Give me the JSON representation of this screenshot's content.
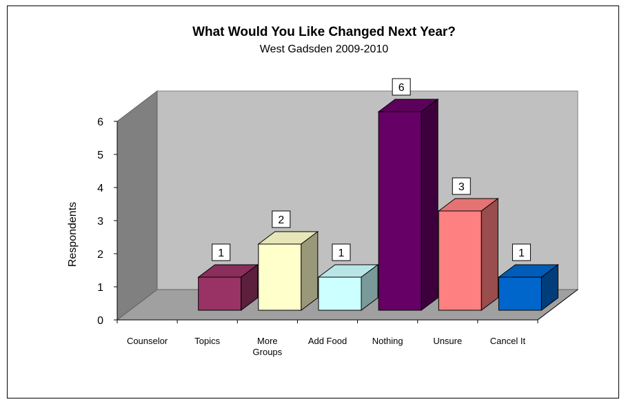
{
  "chart_data": {
    "type": "bar",
    "title": "What Would You Like Changed Next Year?",
    "subtitle": "West Gadsden 2009-2010",
    "ylabel": "Respondents",
    "xlabel": "",
    "ylim": [
      0,
      6
    ],
    "yticks": [
      "0",
      "1",
      "2",
      "3",
      "4",
      "5",
      "6"
    ],
    "categories": [
      "Counselor",
      "Topics",
      "More Groups",
      "Add Food",
      "Nothing",
      "Unsure",
      "Cancel It"
    ],
    "values": [
      0,
      1,
      2,
      1,
      6,
      3,
      1
    ],
    "data_labels": [
      "",
      "1",
      "2",
      "1",
      "6",
      "3",
      "1"
    ],
    "colors": [
      "#993366",
      "#993366",
      "#FFFFCC",
      "#CCFFFF",
      "#660066",
      "#FF8080",
      "#0066CC"
    ],
    "grid": false,
    "legend": "none",
    "three_d": true
  }
}
